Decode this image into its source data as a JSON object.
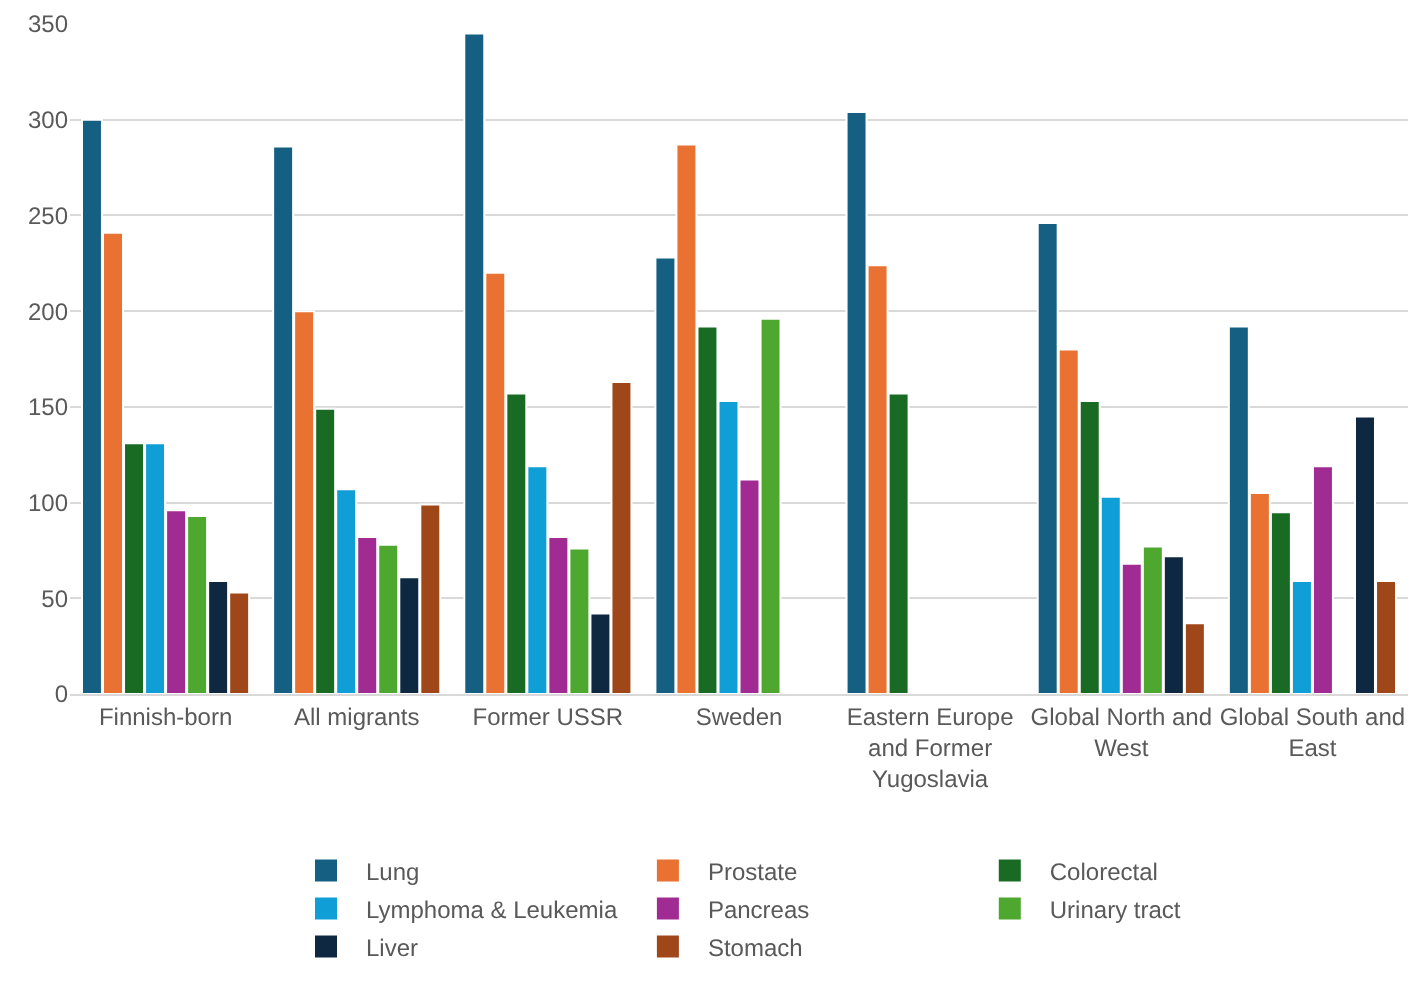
{
  "chart_data": {
    "type": "bar",
    "categories": [
      "Finnish-born",
      "All migrants",
      "Former USSR",
      "Sweden",
      "Eastern Europe and Former Yugoslavia",
      "Global North and West",
      "Global South and East"
    ],
    "series": [
      {
        "name": "Lung",
        "color": "#156082",
        "values": [
          300,
          286,
          345,
          228,
          304,
          246,
          192
        ]
      },
      {
        "name": "Prostate",
        "color": "#e97132",
        "values": [
          241,
          200,
          220,
          287,
          224,
          180,
          105
        ]
      },
      {
        "name": "Colorectal",
        "color": "#196b24",
        "values": [
          131,
          149,
          157,
          192,
          157,
          153,
          95
        ]
      },
      {
        "name": "Lymphoma & Leukemia",
        "color": "#0f9ed5",
        "values": [
          131,
          107,
          119,
          153,
          null,
          103,
          59
        ]
      },
      {
        "name": "Pancreas",
        "color": "#a02b93",
        "values": [
          96,
          82,
          82,
          112,
          null,
          68,
          119
        ]
      },
      {
        "name": "Urinary tract",
        "color": "#4ea72e",
        "values": [
          93,
          78,
          76,
          196,
          null,
          77,
          null
        ]
      },
      {
        "name": "Liver",
        "color": "#0e2841",
        "values": [
          59,
          61,
          42,
          null,
          null,
          72,
          145
        ]
      },
      {
        "name": "Stomach",
        "color": "#a0471a",
        "values": [
          53,
          99,
          163,
          null,
          null,
          37,
          59
        ]
      }
    ],
    "ylim": [
      0,
      350
    ],
    "yticks": [
      0,
      50,
      100,
      150,
      200,
      250,
      300,
      350
    ],
    "grid": "y",
    "legend": "bottom"
  }
}
